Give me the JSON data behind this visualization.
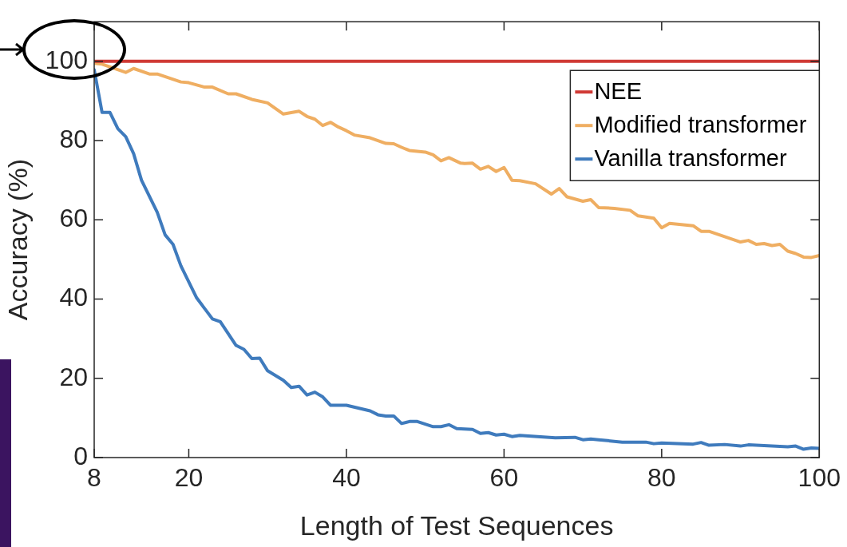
{
  "chart_data": {
    "type": "line",
    "xlabel": "Length of Test Sequences",
    "ylabel": "Accuracy (%)",
    "xlim": [
      8,
      100
    ],
    "ylim": [
      0,
      110
    ],
    "xticks": [
      8,
      20,
      40,
      60,
      80,
      100
    ],
    "yticks": [
      0,
      20,
      40,
      60,
      80,
      100
    ],
    "grid": false,
    "legend": "top right",
    "marker": "none",
    "line_style": "solid",
    "series": [
      {
        "name": "NEE",
        "color": "#d03a35",
        "x": [
          8,
          100
        ],
        "values": [
          100,
          100
        ]
      },
      {
        "name": "Modified transformer",
        "color": "#efae62",
        "x": [
          8,
          9,
          12,
          13,
          15,
          16,
          19,
          20,
          22,
          23,
          25,
          26,
          28,
          30,
          32,
          34,
          35,
          36,
          37,
          38,
          39,
          40,
          41,
          43,
          45,
          46,
          47,
          48,
          50,
          51,
          52,
          53,
          54.5,
          55,
          56,
          57,
          58,
          59,
          60,
          61,
          62,
          64,
          66,
          67,
          68,
          70,
          71,
          72,
          74,
          76,
          77,
          79,
          80,
          81,
          84,
          85,
          86,
          90,
          91,
          92,
          93,
          94,
          95,
          96,
          97,
          98,
          99,
          100
        ],
        "values": [
          99.5,
          99.3,
          97.2,
          98.2,
          96.8,
          96.8,
          94.8,
          94.6,
          93.5,
          93.5,
          91.8,
          91.8,
          90.4,
          89.5,
          86.7,
          87.4,
          86.1,
          85.4,
          83.8,
          84.6,
          83.4,
          82.5,
          81.4,
          80.7,
          79.3,
          79.2,
          78.3,
          77.5,
          77.1,
          76.4,
          74.9,
          75.7,
          74.3,
          74.2,
          74.3,
          72.8,
          73.5,
          72.2,
          73.2,
          70,
          69.9,
          69.1,
          66.5,
          67.9,
          65.8,
          64.7,
          65.1,
          63.1,
          62.9,
          62.4,
          61,
          60.4,
          58,
          59.1,
          58.5,
          57.1,
          57.1,
          54.4,
          54.8,
          53.8,
          54,
          53.5,
          53.8,
          52.1,
          51.5,
          50.6,
          50.5,
          51
        ]
      },
      {
        "name": "Vanilla transformer",
        "color": "#3f7bbd",
        "x": [
          8,
          9,
          10,
          11,
          12,
          13,
          14,
          16,
          17,
          18,
          19,
          21,
          23,
          24,
          26,
          27,
          28,
          29,
          30,
          32,
          33,
          34,
          35,
          36,
          37,
          38,
          40,
          43,
          44,
          45,
          46,
          47,
          48,
          49,
          51,
          52,
          53,
          54,
          56,
          57,
          58,
          59,
          60,
          61,
          62,
          66.5,
          69,
          70,
          71,
          72,
          75,
          78,
          79,
          80,
          84,
          85,
          86,
          88,
          90,
          91,
          96,
          97,
          98,
          99,
          100
        ],
        "values": [
          97.9,
          87.1,
          87.1,
          83,
          81,
          76.7,
          70,
          61.9,
          56.2,
          53.8,
          48.4,
          40.3,
          35,
          34.3,
          28.3,
          27.3,
          25,
          25.1,
          21.9,
          19.5,
          17.7,
          18,
          15.8,
          16.5,
          15.3,
          13.2,
          13.2,
          11.8,
          10.8,
          10.5,
          10.5,
          8.6,
          9.1,
          9.1,
          7.8,
          7.8,
          8.3,
          7.3,
          7.1,
          6.1,
          6.3,
          5.7,
          5.9,
          5.3,
          5.6,
          5,
          5.1,
          4.5,
          4.7,
          4.5,
          3.9,
          3.9,
          3.5,
          3.7,
          3.4,
          3.8,
          3.1,
          3.3,
          2.9,
          3.2,
          2.7,
          2.9,
          2.1,
          2.4,
          2.3
        ]
      }
    ]
  }
}
